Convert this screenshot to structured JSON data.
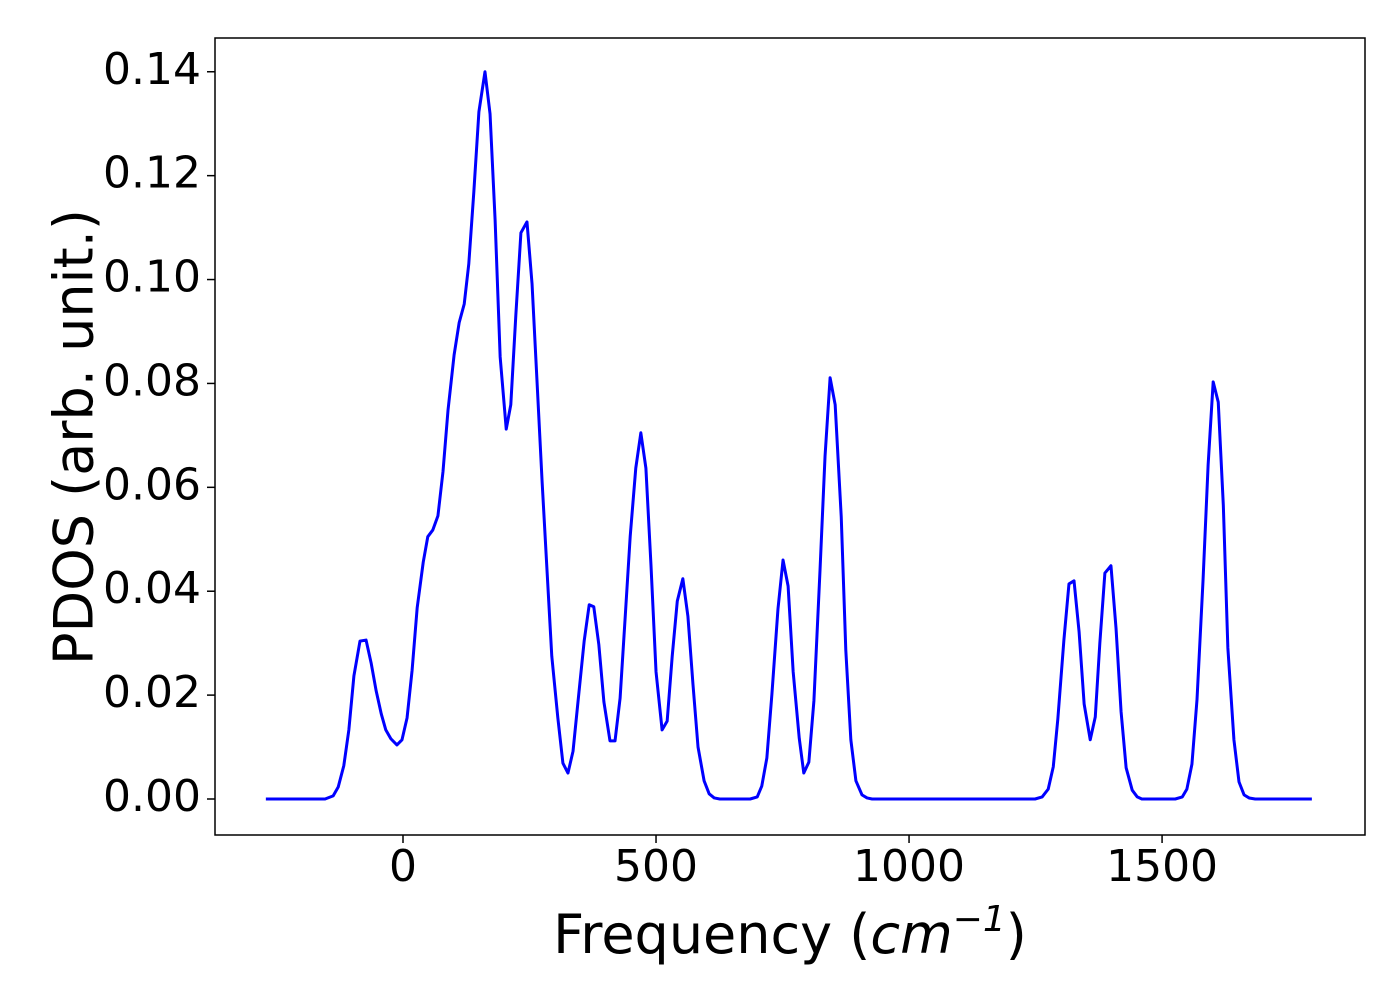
{
  "chart_data": {
    "type": "line",
    "ylabel": "PDOS (arb. unit.)",
    "xlabel": [
      "Frequency (",
      "cm",
      "−1",
      ")"
    ],
    "color": "#0000ff",
    "xlim": [
      -371.5,
      1901
    ],
    "ylim": [
      -0.00693,
      0.1465
    ],
    "xticks": [
      0,
      500,
      1000,
      1500
    ],
    "yticks": [
      {
        "value": 0.0,
        "label": "0.00"
      },
      {
        "value": 0.02,
        "label": "0.02"
      },
      {
        "value": 0.04,
        "label": "0.04"
      },
      {
        "value": 0.06,
        "label": "0.06"
      },
      {
        "value": 0.08,
        "label": "0.08"
      },
      {
        "value": 0.1,
        "label": "0.10"
      },
      {
        "value": 0.12,
        "label": "0.12"
      },
      {
        "value": 0.14,
        "label": "0.14"
      }
    ],
    "grid": false,
    "x": [
      -271,
      -154,
      -138,
      -128,
      -117,
      -107,
      -97,
      -85,
      -73,
      -63,
      -53,
      -43,
      -34,
      -24,
      -12,
      -2,
      8,
      18,
      28,
      40,
      49,
      59,
      69,
      79,
      89,
      101,
      111,
      121,
      130,
      140,
      150,
      162,
      172,
      182,
      192,
      204,
      213,
      223,
      233,
      245,
      255,
      265,
      275,
      285,
      294,
      306,
      316,
      326,
      336,
      346,
      358,
      368,
      377,
      387,
      397,
      409,
      419,
      429,
      439,
      449,
      460,
      470,
      480,
      490,
      500,
      512,
      522,
      532,
      542,
      553,
      563,
      573,
      583,
      595,
      605,
      615,
      626,
      686,
      700,
      709,
      719,
      729,
      741,
      751,
      761,
      771,
      783,
      792,
      802,
      812,
      824,
      834,
      844,
      854,
      866,
      875,
      885,
      895,
      907,
      917,
      927,
      1249,
      1263,
      1275,
      1285,
      1294,
      1306,
      1316,
      1326,
      1336,
      1346,
      1358,
      1368,
      1377,
      1387,
      1399,
      1409,
      1419,
      1429,
      1441,
      1451,
      1460,
      1526,
      1540,
      1549,
      1559,
      1569,
      1581,
      1591,
      1601,
      1611,
      1621,
      1630,
      1642,
      1652,
      1662,
      1672,
      1684,
      1796
    ],
    "values": [
      0,
      0,
      0.0006,
      0.0023,
      0.0064,
      0.0133,
      0.0237,
      0.0304,
      0.0306,
      0.0262,
      0.0208,
      0.0164,
      0.0133,
      0.0116,
      0.0104,
      0.0114,
      0.0156,
      0.0248,
      0.0368,
      0.0456,
      0.0505,
      0.0518,
      0.0545,
      0.063,
      0.0749,
      0.0855,
      0.0917,
      0.0953,
      0.103,
      0.1169,
      0.1323,
      0.14,
      0.1319,
      0.1115,
      0.0851,
      0.0712,
      0.0759,
      0.0932,
      0.109,
      0.1111,
      0.0992,
      0.0801,
      0.0609,
      0.0433,
      0.0275,
      0.0156,
      0.0069,
      0.005,
      0.0092,
      0.0189,
      0.0304,
      0.0374,
      0.037,
      0.0297,
      0.0187,
      0.0112,
      0.0112,
      0.0194,
      0.0349,
      0.0506,
      0.0637,
      0.0705,
      0.0637,
      0.0451,
      0.0245,
      0.0133,
      0.015,
      0.0275,
      0.0381,
      0.0424,
      0.0352,
      0.0221,
      0.01,
      0.0035,
      0.001,
      0.0002,
      0,
      0,
      0.0004,
      0.0025,
      0.0079,
      0.0202,
      0.0366,
      0.046,
      0.041,
      0.0245,
      0.0117,
      0.005,
      0.0071,
      0.0189,
      0.0439,
      0.066,
      0.0811,
      0.0759,
      0.0543,
      0.0287,
      0.0114,
      0.0035,
      0.0008,
      0.0002,
      0,
      0,
      0.0004,
      0.0019,
      0.0062,
      0.0154,
      0.0306,
      0.0414,
      0.042,
      0.0322,
      0.0183,
      0.0114,
      0.0158,
      0.03,
      0.0435,
      0.0449,
      0.0329,
      0.0168,
      0.006,
      0.0017,
      0.0004,
      0,
      0,
      0.0004,
      0.0019,
      0.0067,
      0.0191,
      0.0422,
      0.0643,
      0.0803,
      0.0764,
      0.0566,
      0.0291,
      0.0114,
      0.0033,
      0.0008,
      0.0002,
      0,
      0
    ]
  }
}
